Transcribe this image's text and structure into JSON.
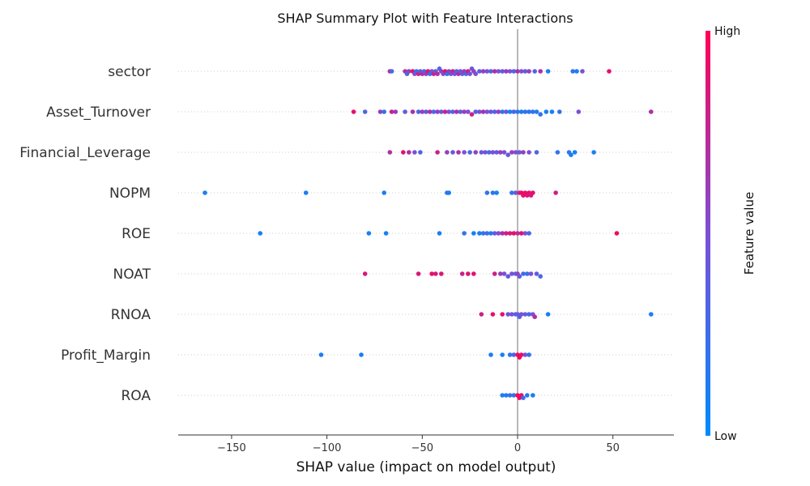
{
  "chart_data": {
    "type": "scatter",
    "title": "SHAP Summary Plot with Feature Interactions",
    "xlabel": "SHAP value (impact on model output)",
    "xlim": [
      -178,
      82
    ],
    "xticks": [
      -150,
      -100,
      -50,
      0,
      50
    ],
    "xtick_labels": [
      "−150",
      "−100",
      "−50",
      "0",
      "50"
    ],
    "colorbar": {
      "label": "Feature value",
      "high_label": "High",
      "low_label": "Low",
      "low_color": "#008bfb",
      "mid_color": "#7c4fd6",
      "high_color": "#ff0052"
    },
    "features": [
      {
        "name": "sector",
        "points": [
          [
            -67,
            0.7
          ],
          [
            -66,
            0.3
          ],
          [
            -59,
            0.7
          ],
          [
            -58,
            0.3
          ],
          [
            -57,
            0.6
          ],
          [
            -55,
            0.9
          ],
          [
            -54,
            0.5
          ],
          [
            -53,
            0.2
          ],
          [
            -52,
            0.8
          ],
          [
            -51,
            0.4
          ],
          [
            -50,
            0.7
          ],
          [
            -49,
            0.3
          ],
          [
            -48,
            0.6
          ],
          [
            -47,
            0.9
          ],
          [
            -46,
            0.2
          ],
          [
            -45,
            0.5
          ],
          [
            -44,
            0.8
          ],
          [
            -43,
            0.4
          ],
          [
            -42,
            0.7
          ],
          [
            -41,
            0.3
          ],
          [
            -40,
            0.6
          ],
          [
            -39,
            0.5
          ],
          [
            -38,
            0.9
          ],
          [
            -37,
            0.2
          ],
          [
            -36,
            0.6
          ],
          [
            -35,
            0.4
          ],
          [
            -34,
            0.8
          ],
          [
            -33,
            0.5
          ],
          [
            -32,
            0.3
          ],
          [
            -31,
            0.7
          ],
          [
            -30,
            0.5
          ],
          [
            -29,
            0.4
          ],
          [
            -28,
            0.6
          ],
          [
            -27,
            0.3
          ],
          [
            -26,
            0.8
          ],
          [
            -25,
            0.5
          ],
          [
            -24,
            0.4
          ],
          [
            -23,
            0.6
          ],
          [
            -22,
            0.5
          ],
          [
            -20,
            0.4
          ],
          [
            -18,
            0.6
          ],
          [
            -16,
            0.5
          ],
          [
            -14,
            0.3
          ],
          [
            -12,
            0.7
          ],
          [
            -10,
            0.5
          ],
          [
            -8,
            0.4
          ],
          [
            -6,
            0.6
          ],
          [
            -4,
            0.5
          ],
          [
            -2,
            0.3
          ],
          [
            0,
            0.7
          ],
          [
            2,
            0.5
          ],
          [
            4,
            0.4
          ],
          [
            6,
            0.6
          ],
          [
            9,
            0.3
          ],
          [
            12,
            0.7
          ],
          [
            16,
            0.1
          ],
          [
            29,
            0.2
          ],
          [
            31,
            0.1
          ],
          [
            34,
            0.5
          ],
          [
            48,
            0.9
          ]
        ]
      },
      {
        "name": "Asset_Turnover",
        "points": [
          [
            -86,
            0.9
          ],
          [
            -80,
            0.3
          ],
          [
            -72,
            0.6
          ],
          [
            -70,
            0.2
          ],
          [
            -66,
            0.8
          ],
          [
            -64,
            0.6
          ],
          [
            -59,
            0.4
          ],
          [
            -55,
            0.7
          ],
          [
            -52,
            0.3
          ],
          [
            -50,
            0.6
          ],
          [
            -48,
            0.4
          ],
          [
            -46,
            0.7
          ],
          [
            -44,
            0.3
          ],
          [
            -42,
            0.6
          ],
          [
            -40,
            0.4
          ],
          [
            -38,
            0.8
          ],
          [
            -36,
            0.5
          ],
          [
            -34,
            0.3
          ],
          [
            -32,
            0.7
          ],
          [
            -30,
            0.4
          ],
          [
            -28,
            0.6
          ],
          [
            -26,
            0.5
          ],
          [
            -24,
            0.8
          ],
          [
            -22,
            0.3
          ],
          [
            -20,
            0.5
          ],
          [
            -18,
            0.7
          ],
          [
            -16,
            0.4
          ],
          [
            -14,
            0.5
          ],
          [
            -12,
            0.3
          ],
          [
            -10,
            0.6
          ],
          [
            -8,
            0.2
          ],
          [
            -6,
            0.4
          ],
          [
            -4,
            0.1
          ],
          [
            -2,
            0.3
          ],
          [
            0,
            0.2
          ],
          [
            2,
            0.1
          ],
          [
            4,
            0.2
          ],
          [
            6,
            0.15
          ],
          [
            8,
            0.25
          ],
          [
            10,
            0.1
          ],
          [
            12,
            0.2
          ],
          [
            15,
            0.1
          ],
          [
            18,
            0.1
          ],
          [
            22,
            0.2
          ],
          [
            32,
            0.5
          ],
          [
            70,
            0.7
          ]
        ]
      },
      {
        "name": "Financial_Leverage",
        "points": [
          [
            -67,
            0.7
          ],
          [
            -60,
            0.9
          ],
          [
            -57,
            0.7
          ],
          [
            -54,
            0.5
          ],
          [
            -51,
            0.3
          ],
          [
            -42,
            0.8
          ],
          [
            -37,
            0.6
          ],
          [
            -34,
            0.4
          ],
          [
            -31,
            0.7
          ],
          [
            -28,
            0.5
          ],
          [
            -25,
            0.3
          ],
          [
            -22,
            0.6
          ],
          [
            -19,
            0.4
          ],
          [
            -17,
            0.5
          ],
          [
            -15,
            0.3
          ],
          [
            -13,
            0.5
          ],
          [
            -11,
            0.4
          ],
          [
            -9,
            0.6
          ],
          [
            -7,
            0.5
          ],
          [
            -5,
            0.4
          ],
          [
            -3,
            0.6
          ],
          [
            -1,
            0.5
          ],
          [
            1,
            0.4
          ],
          [
            3,
            0.6
          ],
          [
            6,
            0.5
          ],
          [
            10,
            0.3
          ],
          [
            21,
            0.2
          ],
          [
            27,
            0.2
          ],
          [
            28,
            0.1
          ],
          [
            30,
            0.1
          ],
          [
            40,
            0.1
          ]
        ]
      },
      {
        "name": "NOPM",
        "points": [
          [
            -164,
            0.1
          ],
          [
            -111,
            0.1
          ],
          [
            -70,
            0.1
          ],
          [
            -37,
            0.2
          ],
          [
            -36,
            0.1
          ],
          [
            -16,
            0.2
          ],
          [
            -13,
            0.2
          ],
          [
            -11,
            0.1
          ],
          [
            -3,
            0.2
          ],
          [
            -1,
            0.4
          ],
          [
            1,
            0.8
          ],
          [
            2,
            0.95
          ],
          [
            3,
            0.9
          ],
          [
            4,
            0.92
          ],
          [
            5,
            0.88
          ],
          [
            6,
            0.9
          ],
          [
            7,
            0.85
          ],
          [
            8,
            0.9
          ],
          [
            20,
            0.8
          ]
        ]
      },
      {
        "name": "ROE",
        "points": [
          [
            -135,
            0.1
          ],
          [
            -78,
            0.1
          ],
          [
            -69,
            0.1
          ],
          [
            -41,
            0.1
          ],
          [
            -28,
            0.2
          ],
          [
            -23,
            0.1
          ],
          [
            -20,
            0.1
          ],
          [
            -18,
            0.2
          ],
          [
            -16,
            0.3
          ],
          [
            -14,
            0.1
          ],
          [
            -12,
            0.4
          ],
          [
            -10,
            0.5
          ],
          [
            -8,
            0.7
          ],
          [
            -6,
            0.8
          ],
          [
            -4,
            0.85
          ],
          [
            -2,
            0.9
          ],
          [
            0,
            0.7
          ],
          [
            2,
            0.9
          ],
          [
            4,
            0.5
          ],
          [
            6,
            0.3
          ],
          [
            52,
            0.95
          ]
        ]
      },
      {
        "name": "NOAT",
        "points": [
          [
            -80,
            0.85
          ],
          [
            -52,
            0.85
          ],
          [
            -45,
            0.9
          ],
          [
            -43,
            0.85
          ],
          [
            -40,
            0.85
          ],
          [
            -29,
            0.8
          ],
          [
            -26,
            0.85
          ],
          [
            -23,
            0.9
          ],
          [
            -12,
            0.8
          ],
          [
            -9,
            0.6
          ],
          [
            -7,
            0.5
          ],
          [
            -5,
            0.4
          ],
          [
            -3,
            0.5
          ],
          [
            -1,
            0.3
          ],
          [
            0,
            0.6
          ],
          [
            1,
            0.4
          ],
          [
            3,
            0.3
          ],
          [
            5,
            0.2
          ],
          [
            7,
            0.5
          ],
          [
            10,
            0.4
          ],
          [
            12,
            0.3
          ]
        ]
      },
      {
        "name": "RNOA",
        "points": [
          [
            -19,
            0.8
          ],
          [
            -13,
            0.9
          ],
          [
            -8,
            0.9
          ],
          [
            -5,
            0.4
          ],
          [
            -3,
            0.5
          ],
          [
            -1,
            0.3
          ],
          [
            0,
            0.4
          ],
          [
            1,
            0.35
          ],
          [
            2,
            0.5
          ],
          [
            4,
            0.4
          ],
          [
            6,
            0.3
          ],
          [
            8,
            0.5
          ],
          [
            9,
            0.7
          ],
          [
            16,
            0.1
          ],
          [
            70,
            0.1
          ]
        ]
      },
      {
        "name": "Profit_Margin",
        "points": [
          [
            -103,
            0.1
          ],
          [
            -82,
            0.1
          ],
          [
            -14,
            0.1
          ],
          [
            -8,
            0.1
          ],
          [
            -4,
            0.2
          ],
          [
            -2,
            0.3
          ],
          [
            0,
            0.95
          ],
          [
            1,
            0.97
          ],
          [
            2,
            0.92
          ],
          [
            4,
            0.5
          ],
          [
            6,
            0.2
          ]
        ]
      },
      {
        "name": "ROA",
        "points": [
          [
            -8,
            0.1
          ],
          [
            -6,
            0.15
          ],
          [
            -4,
            0.2
          ],
          [
            -2,
            0.2
          ],
          [
            0,
            0.95
          ],
          [
            1,
            0.97
          ],
          [
            2,
            0.9
          ],
          [
            3,
            0.25
          ],
          [
            5,
            0.15
          ],
          [
            8,
            0.1
          ]
        ]
      }
    ]
  }
}
